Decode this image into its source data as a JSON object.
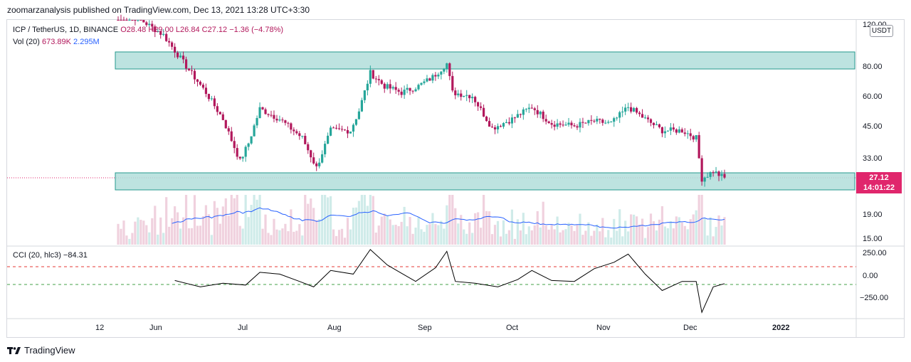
{
  "header": {
    "publisher_text": "zoomarzanalysis published on TradingView.com, Dec 13, 2021 13:28 UTC+3:30"
  },
  "legend": {
    "symbol": "ICP / TetherUS, 1D, BINANCE",
    "open": "O28.48",
    "high": "H29.00",
    "low": "L26.84",
    "close": "C27.12",
    "change": "−1.36 (−4.78%)",
    "volume_label": "Vol (20)",
    "volume_value": "673.89K",
    "volume_ma": "2.295M",
    "cci_label": "CCI (20, hlc3)",
    "cci_value": "−84.31"
  },
  "currency_button": "USDT",
  "price_tag": {
    "price": "27.12",
    "countdown": "14:01:22"
  },
  "footer": {
    "brand": "TradingView"
  },
  "colors": {
    "bull": "#26a69a",
    "bear": "#b2185c",
    "zone_fill": "#b2dfdb",
    "zone_border": "#00897b",
    "ma_line": "#2962ff",
    "cci_line": "#000000",
    "upper_band": "#e53935",
    "lower_band": "#43a047"
  },
  "chart_data": [
    {
      "type": "candlestick",
      "title": "ICP / TetherUS, 1D, BINANCE",
      "scale": "log",
      "y_ticks": [
        "120.00",
        "80.00",
        "60.00",
        "45.00",
        "33.00",
        "19.00",
        "15.00"
      ],
      "x_ticks": [
        "12",
        "Jun",
        "Jul",
        "Aug",
        "Sep",
        "Oct",
        "Nov",
        "Dec",
        "2022"
      ],
      "last_price": 27.12,
      "zones": [
        {
          "name": "resistance",
          "low": 78,
          "high": 92
        },
        {
          "name": "support",
          "low": 24.5,
          "high": 28.6
        }
      ],
      "close_series": [
        {
          "date": "2021-05-12",
          "close": 135
        },
        {
          "date": "2021-05-20",
          "close": 125
        },
        {
          "date": "2021-05-28",
          "close": 108
        },
        {
          "date": "2021-06-05",
          "close": 80
        },
        {
          "date": "2021-06-12",
          "close": 62
        },
        {
          "date": "2021-06-18",
          "close": 48
        },
        {
          "date": "2021-06-24",
          "close": 32
        },
        {
          "date": "2021-06-27",
          "close": 38
        },
        {
          "date": "2021-07-01",
          "close": 53
        },
        {
          "date": "2021-07-08",
          "close": 48
        },
        {
          "date": "2021-07-16",
          "close": 40
        },
        {
          "date": "2021-07-21",
          "close": 30
        },
        {
          "date": "2021-07-26",
          "close": 43
        },
        {
          "date": "2021-08-02",
          "close": 43
        },
        {
          "date": "2021-08-05",
          "close": 52
        },
        {
          "date": "2021-08-09",
          "close": 75
        },
        {
          "date": "2021-08-14",
          "close": 66
        },
        {
          "date": "2021-08-20",
          "close": 62
        },
        {
          "date": "2021-08-26",
          "close": 66
        },
        {
          "date": "2021-08-31",
          "close": 72
        },
        {
          "date": "2021-09-05",
          "close": 82
        },
        {
          "date": "2021-09-07",
          "close": 62
        },
        {
          "date": "2021-09-14",
          "close": 60
        },
        {
          "date": "2021-09-21",
          "close": 44
        },
        {
          "date": "2021-09-28",
          "close": 48
        },
        {
          "date": "2021-10-05",
          "close": 54
        },
        {
          "date": "2021-10-12",
          "close": 46
        },
        {
          "date": "2021-10-20",
          "close": 45
        },
        {
          "date": "2021-10-27",
          "close": 47
        },
        {
          "date": "2021-11-02",
          "close": 46
        },
        {
          "date": "2021-11-08",
          "close": 54
        },
        {
          "date": "2021-11-14",
          "close": 48
        },
        {
          "date": "2021-11-20",
          "close": 43
        },
        {
          "date": "2021-11-27",
          "close": 43
        },
        {
          "date": "2021-12-02",
          "close": 40
        },
        {
          "date": "2021-12-04",
          "close": 27
        },
        {
          "date": "2021-12-08",
          "close": 29
        },
        {
          "date": "2021-12-12",
          "close": 27.12
        }
      ]
    },
    {
      "type": "bar",
      "title": "Vol (20)",
      "y_ticks": [],
      "ma_value": "2.295M",
      "last_volume": "673.89K"
    },
    {
      "type": "line",
      "title": "CCI (20, hlc3)",
      "y_ticks": [
        "250.00",
        "0.00",
        "−250.00"
      ],
      "bands": [
        100,
        -100
      ],
      "series": [
        {
          "date": "2021-06-01",
          "value": -50
        },
        {
          "date": "2021-06-10",
          "value": -120
        },
        {
          "date": "2021-06-18",
          "value": -80
        },
        {
          "date": "2021-06-26",
          "value": -100
        },
        {
          "date": "2021-07-01",
          "value": 40
        },
        {
          "date": "2021-07-08",
          "value": 20
        },
        {
          "date": "2021-07-15",
          "value": -60
        },
        {
          "date": "2021-07-20",
          "value": -120
        },
        {
          "date": "2021-07-26",
          "value": 60
        },
        {
          "date": "2021-08-03",
          "value": 20
        },
        {
          "date": "2021-08-09",
          "value": 290
        },
        {
          "date": "2021-08-15",
          "value": 120
        },
        {
          "date": "2021-08-20",
          "value": 30
        },
        {
          "date": "2021-08-25",
          "value": -60
        },
        {
          "date": "2021-09-01",
          "value": 90
        },
        {
          "date": "2021-09-05",
          "value": 270
        },
        {
          "date": "2021-09-08",
          "value": -60
        },
        {
          "date": "2021-09-15",
          "value": -80
        },
        {
          "date": "2021-09-23",
          "value": -120
        },
        {
          "date": "2021-09-30",
          "value": -40
        },
        {
          "date": "2021-10-05",
          "value": 60
        },
        {
          "date": "2021-10-12",
          "value": -50
        },
        {
          "date": "2021-10-20",
          "value": -60
        },
        {
          "date": "2021-10-27",
          "value": 80
        },
        {
          "date": "2021-11-03",
          "value": 150
        },
        {
          "date": "2021-11-08",
          "value": 240
        },
        {
          "date": "2021-11-14",
          "value": 20
        },
        {
          "date": "2021-11-20",
          "value": -160
        },
        {
          "date": "2021-11-27",
          "value": -60
        },
        {
          "date": "2021-12-02",
          "value": -60
        },
        {
          "date": "2021-12-04",
          "value": -400
        },
        {
          "date": "2021-12-08",
          "value": -120
        },
        {
          "date": "2021-12-12",
          "value": -84.31
        }
      ]
    }
  ]
}
